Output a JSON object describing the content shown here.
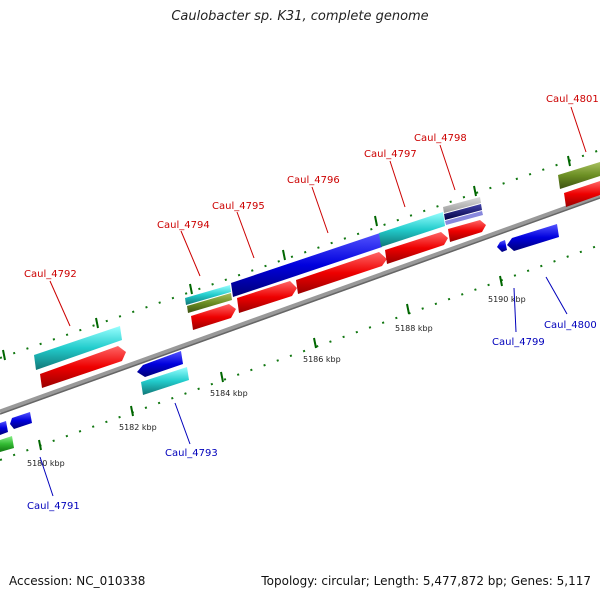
{
  "title": "Caulobacter sp. K31, complete genome",
  "footer": {
    "accession": "Accession: NC_010338",
    "summary": "Topology: circular; Length: 5,477,872 bp; Genes: 5,117"
  },
  "ticks": [
    "5180 kbp",
    "5182 kbp",
    "5184 kbp",
    "5186 kbp",
    "5188 kbp",
    "5190 kbp"
  ],
  "genes_top": [
    "Caul_4792",
    "Caul_4794",
    "Caul_4795",
    "Caul_4796",
    "Caul_4797",
    "Caul_4798",
    "Caul_4801"
  ],
  "genes_bottom": [
    "Caul_4791",
    "Caul_4793",
    "Caul_4799",
    "Caul_4800"
  ],
  "colors": {
    "red": "#ee0000",
    "blue": "#0000dd",
    "cyan": "#22cccc",
    "olive": "#6b8e23",
    "green": "#33bb33",
    "backbone": "#888888",
    "tick": "#006600",
    "label_top": "#cc0000",
    "label_bottom": "#0000bb"
  }
}
